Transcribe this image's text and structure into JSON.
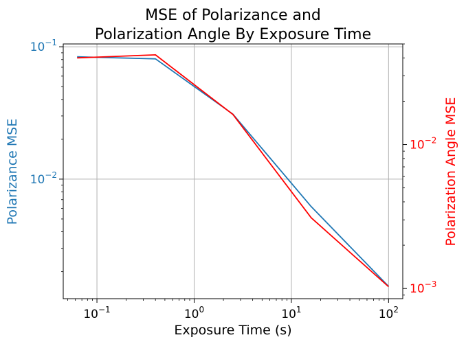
{
  "chart_data": {
    "type": "line",
    "title_lines": [
      "MSE of Polarizance and",
      "Polarization Angle By Exposure Time"
    ],
    "xlabel": "Exposure Time (s)",
    "ylabel_left": "Polarizance MSE",
    "ylabel_right": "Polarization Angle MSE",
    "x_scale": "log",
    "y_left_scale": "log",
    "y_right_scale": "log",
    "xlim": [
      0.045,
      140
    ],
    "ylim_left": [
      0.00125,
      0.105
    ],
    "ylim_right": [
      0.00085,
      0.05
    ],
    "grid": true,
    "x_ticks": [
      {
        "value": 0.1,
        "base": "10",
        "exp": "−1"
      },
      {
        "value": 1,
        "base": "10",
        "exp": "0"
      },
      {
        "value": 10,
        "base": "10",
        "exp": "1"
      },
      {
        "value": 100,
        "base": "10",
        "exp": "2"
      }
    ],
    "y_left_ticks": [
      {
        "value": 0.01,
        "base": "10",
        "exp": "−2"
      },
      {
        "value": 0.1,
        "base": "10",
        "exp": "−1"
      }
    ],
    "y_right_ticks": [
      {
        "value": 0.001,
        "base": "10",
        "exp": "−3"
      },
      {
        "value": 0.01,
        "base": "10",
        "exp": "−2"
      }
    ],
    "series": [
      {
        "axis": "left",
        "color": "#1f77b4",
        "x": [
          0.0625,
          0.4,
          2.5,
          16,
          100
        ],
        "y": [
          0.084,
          0.081,
          0.031,
          0.0062,
          0.00155
        ]
      },
      {
        "axis": "right",
        "color": "#ff0000",
        "x": [
          0.0625,
          0.4,
          2.5,
          16,
          100
        ],
        "y": [
          0.04,
          0.042,
          0.0162,
          0.0031,
          0.00103
        ]
      }
    ],
    "left_axis_color": "#1f77b4",
    "right_axis_color": "#ff0000"
  }
}
